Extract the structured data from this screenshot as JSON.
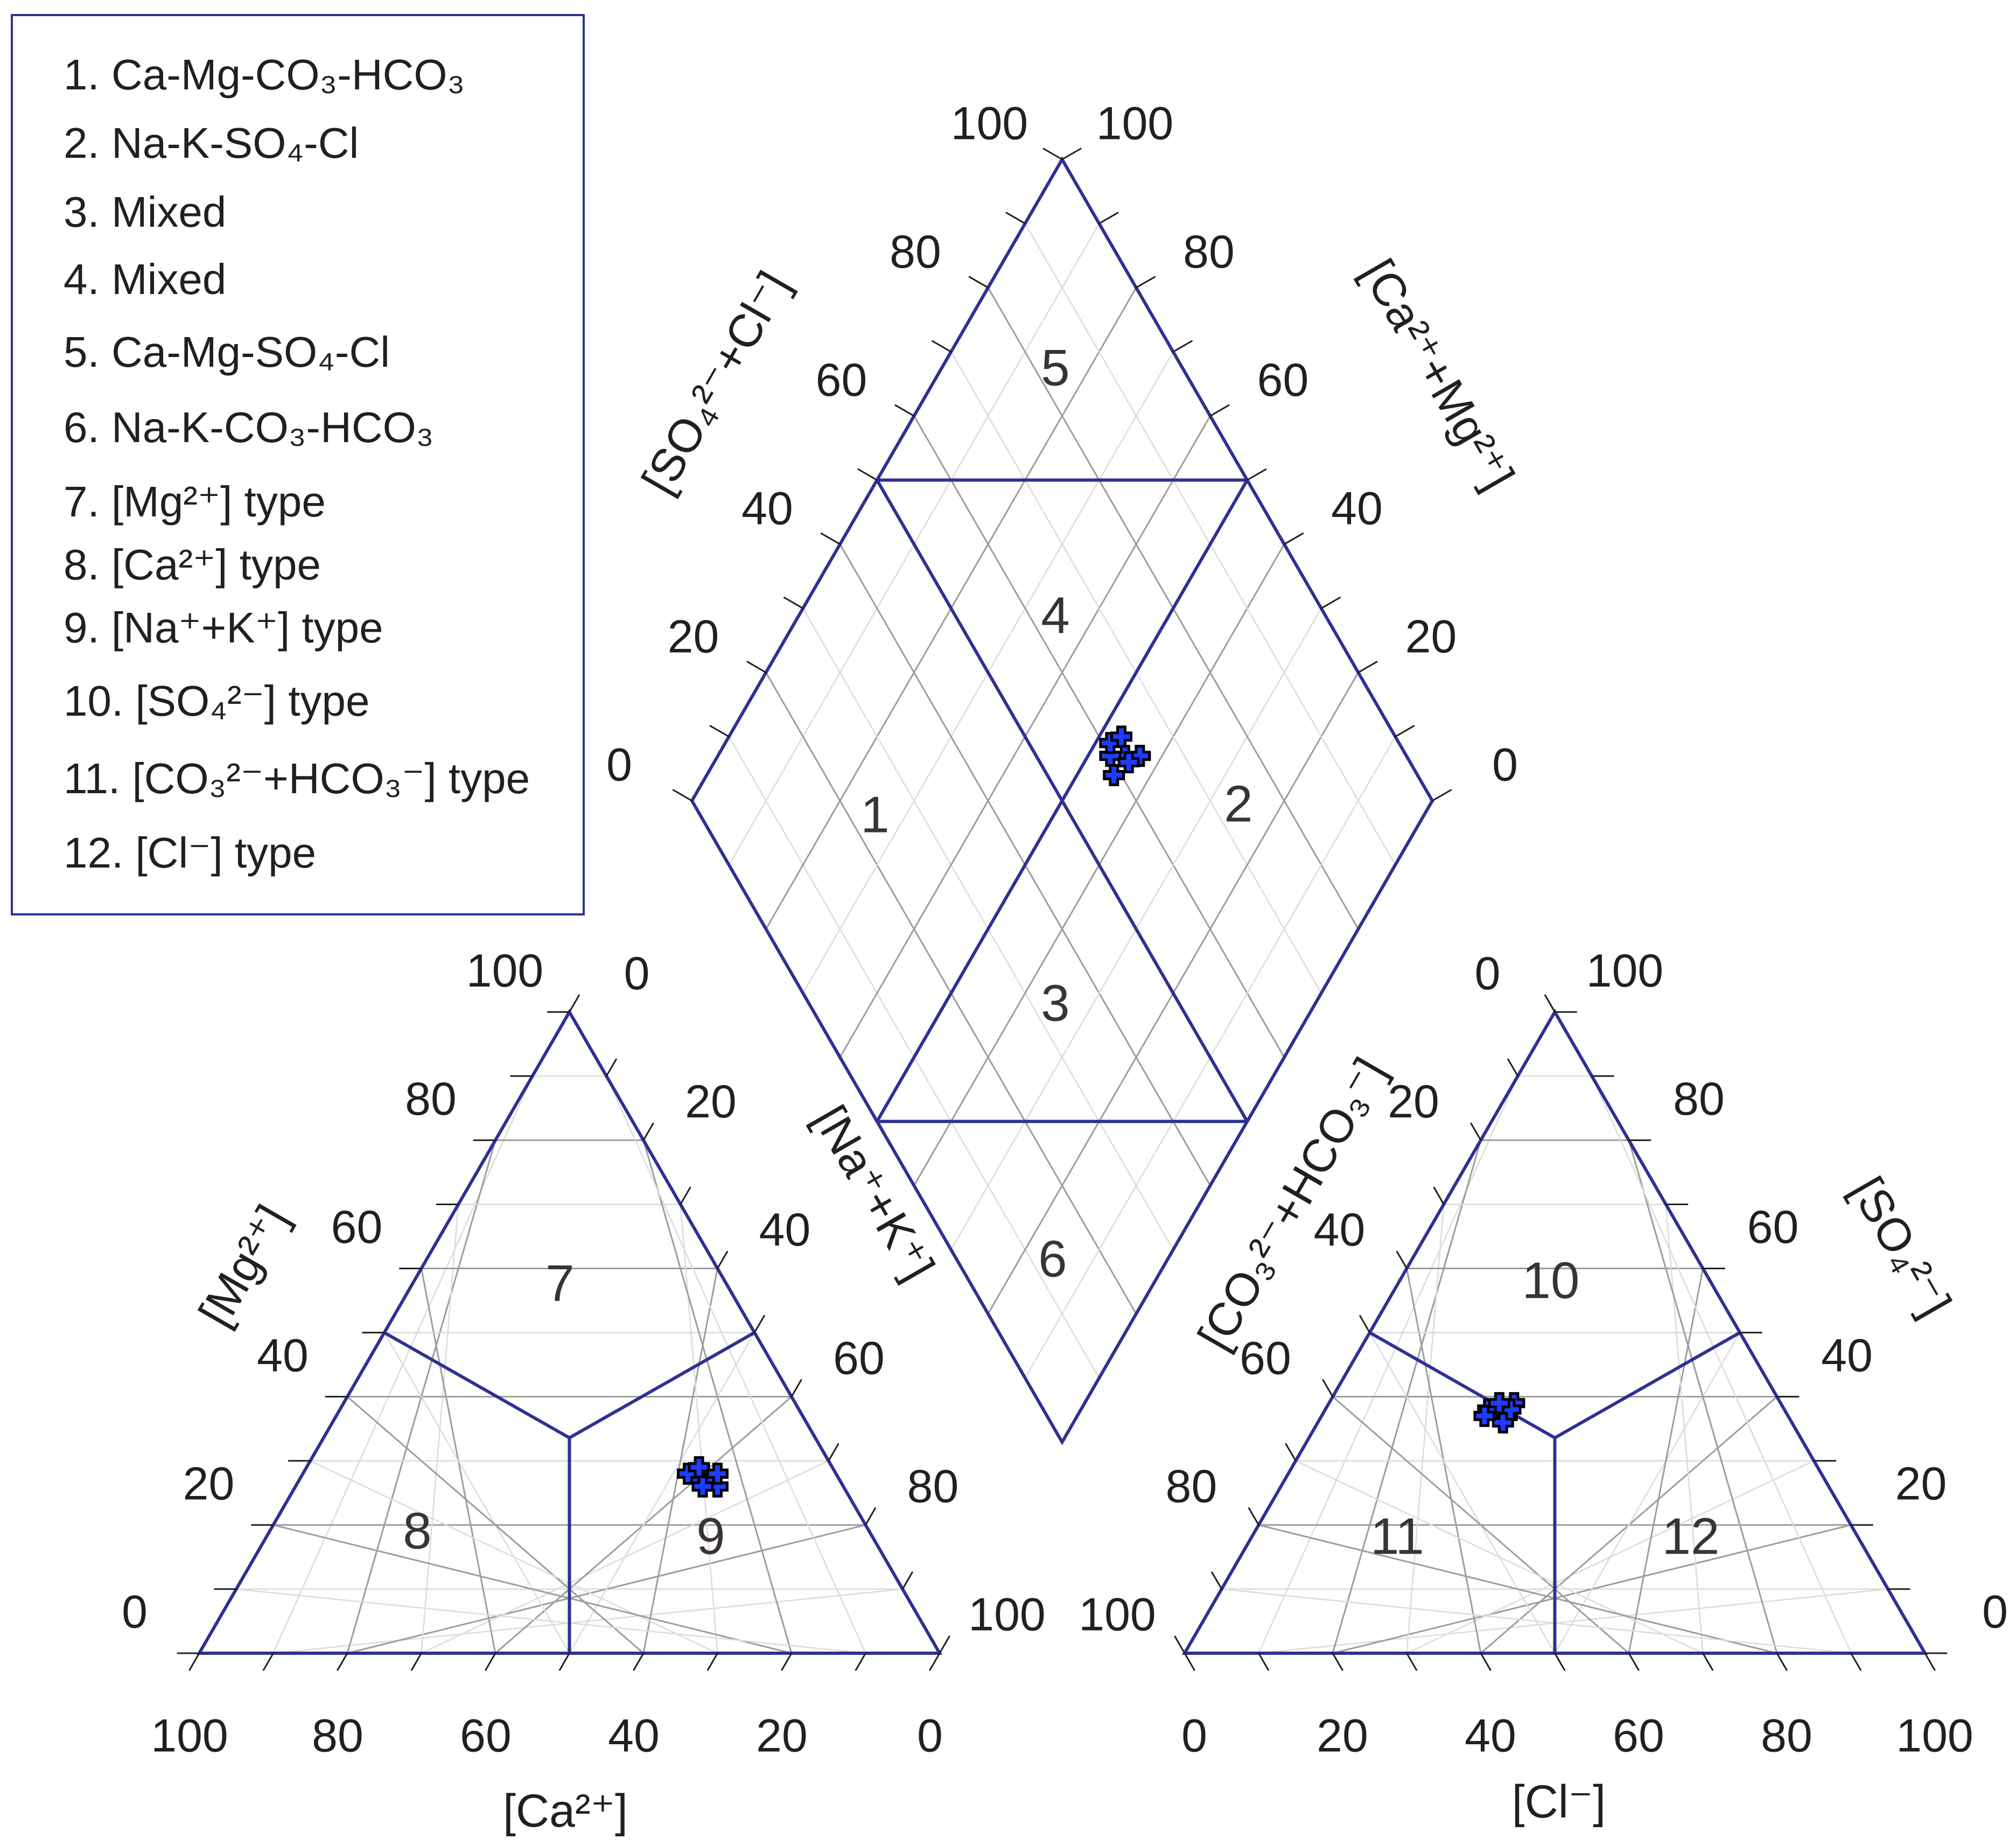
{
  "chart_data": {
    "type": "piper",
    "legend": [
      {
        "number": "1.",
        "label": "Ca-Mg-CO₃-HCO₃"
      },
      {
        "number": "2.",
        "label": "Na-K-SO₄-Cl"
      },
      {
        "number": "3.",
        "label": "Mixed"
      },
      {
        "number": "4.",
        "label": "Mixed"
      },
      {
        "number": "5.",
        "label": "Ca-Mg-SO₄-Cl"
      },
      {
        "number": "6.",
        "label": "Na-K-CO₃-HCO₃"
      },
      {
        "number": "7.",
        "label": "[Mg²⁺] type"
      },
      {
        "number": "8.",
        "label": "[Ca²⁺] type"
      },
      {
        "number": "9.",
        "label": "[Na⁺+K⁺] type"
      },
      {
        "number": "10.",
        "label": "[SO₄²⁻] type"
      },
      {
        "number": "11.",
        "label": "[CO₃²⁻+HCO₃⁻] type"
      },
      {
        "number": "12.",
        "label": "[Cl⁻] type"
      }
    ],
    "zone_labels": [
      "1",
      "2",
      "3",
      "4",
      "5",
      "6",
      "7",
      "8",
      "9",
      "10",
      "11",
      "12"
    ],
    "tick_values": [
      "0",
      "20",
      "40",
      "60",
      "80",
      "100"
    ],
    "axis_titles": {
      "cation_bottom": "[Ca²⁺]",
      "cation_left": "[Mg²⁺]",
      "diamond_na_k": "[Na⁺+K⁺]",
      "diamond_so4_cl": "[SO₄²⁻+Cl⁻]",
      "diamond_ca_mg": "[Ca²⁺+Mg²⁺]",
      "anion_left": "[CO₃²⁻+HCO₃⁻]",
      "anion_right": "[SO₄²⁻]",
      "anion_bottom": "[Cl⁻]"
    },
    "samples": [
      {
        "ca": 18,
        "mg": 27,
        "na_k": 55,
        "hco3": 38,
        "so4": 37,
        "cl": 25
      },
      {
        "ca": 19,
        "mg": 28,
        "na_k": 53,
        "hco3": 40,
        "so4": 38,
        "cl": 22
      },
      {
        "ca": 17,
        "mg": 26,
        "na_k": 57,
        "hco3": 36,
        "so4": 39,
        "cl": 25
      },
      {
        "ca": 20,
        "mg": 28,
        "na_k": 52,
        "hco3": 39,
        "so4": 36,
        "cl": 25
      },
      {
        "ca": 18,
        "mg": 29,
        "na_k": 53,
        "hco3": 37,
        "so4": 38,
        "cl": 25
      },
      {
        "ca": 16,
        "mg": 28,
        "na_k": 56,
        "hco3": 38,
        "so4": 39,
        "cl": 23
      },
      {
        "ca": 19,
        "mg": 26,
        "na_k": 55,
        "hco3": 41,
        "so4": 37,
        "cl": 22
      }
    ],
    "colors": {
      "boundary": "#2e3192",
      "grid_major": "#9d9d9d",
      "grid_minor": "#dcdcdc",
      "marker_fill": "#1e3cff",
      "marker_edge": "#000000"
    },
    "marker": "cross"
  }
}
